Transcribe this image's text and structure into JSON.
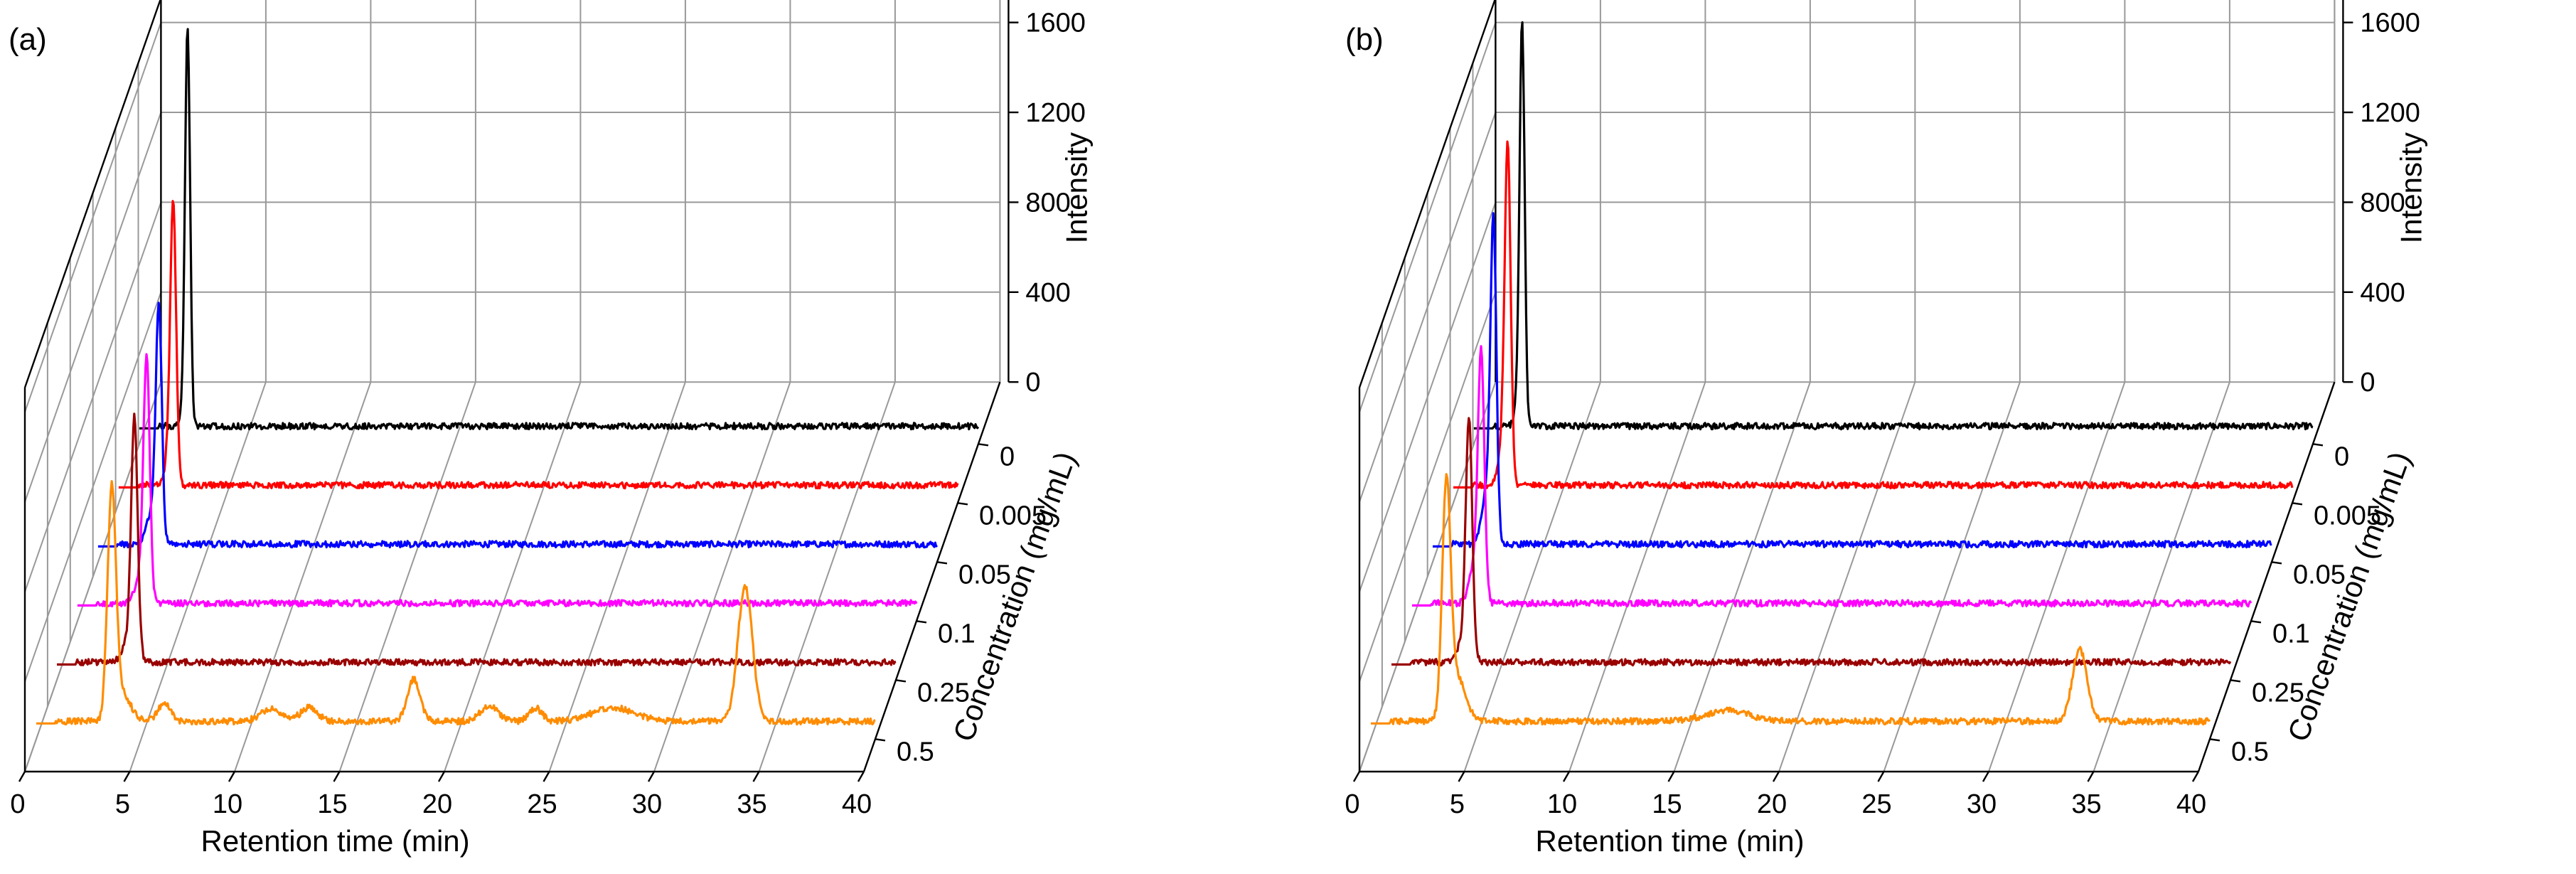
{
  "chart_data": [
    {
      "type": "line",
      "subtype": "3d-waterfall",
      "panel_label": "(a)",
      "xlabel": "Retention time (min)",
      "ylabel": "Concentration (mg/mL)",
      "zlabel": "Intensity",
      "xlim": [
        0,
        40
      ],
      "zlim": [
        0,
        1800
      ],
      "x_ticks": [
        "0",
        "5",
        "10",
        "15",
        "20",
        "25",
        "30",
        "35",
        "40"
      ],
      "z_ticks": [
        "0",
        "400",
        "800",
        "1200",
        "1600"
      ],
      "series": [
        {
          "name": "0",
          "color": "#000000",
          "peaks": [
            [
              2.3,
              1750,
              0.12
            ],
            [
              2.1,
              60,
              0.15
            ]
          ]
        },
        {
          "name": "0.005",
          "color": "#ff0000",
          "peaks": [
            [
              2.6,
              1200,
              0.14
            ],
            [
              2.4,
              120,
              0.2
            ]
          ]
        },
        {
          "name": "0.05",
          "color": "#0000ff",
          "peaks": [
            [
              2.9,
              1000,
              0.14
            ],
            [
              2.6,
              160,
              0.25
            ]
          ]
        },
        {
          "name": "0.1",
          "color": "#ff00ff",
          "peaks": [
            [
              3.3,
              1050,
              0.15
            ],
            [
              3.0,
              120,
              0.25
            ]
          ]
        },
        {
          "name": "0.25",
          "color": "#990000",
          "peaks": [
            [
              3.7,
              1000,
              0.15
            ],
            [
              3.5,
              120,
              0.3
            ]
          ]
        },
        {
          "name": "0.5",
          "color": "#ff8c00",
          "peaks": [
            [
              3.6,
              1000,
              0.2
            ],
            [
              4.1,
              120,
              0.4
            ],
            [
              6.1,
              80,
              0.3
            ],
            [
              11.2,
              55,
              0.5
            ],
            [
              13.0,
              60,
              0.4
            ],
            [
              18.0,
              190,
              0.3
            ],
            [
              21.6,
              70,
              0.4
            ],
            [
              23.8,
              60,
              0.3
            ],
            [
              27.5,
              60,
              1.0
            ],
            [
              33.8,
              600,
              0.35
            ]
          ]
        }
      ]
    },
    {
      "type": "line",
      "subtype": "3d-waterfall",
      "panel_label": "(b)",
      "xlabel": "Retention time (min)",
      "ylabel": "Concentration (mg/mL)",
      "zlabel": "Intensity",
      "xlim": [
        0,
        40
      ],
      "zlim": [
        0,
        1800
      ],
      "x_ticks": [
        "0",
        "5",
        "10",
        "15",
        "20",
        "25",
        "30",
        "35",
        "40"
      ],
      "z_ticks": [
        "0",
        "400",
        "800",
        "1200",
        "1600"
      ],
      "series": [
        {
          "name": "0",
          "color": "#000000",
          "peaks": [
            [
              2.3,
              1750,
              0.12
            ],
            [
              2.1,
              110,
              0.15
            ]
          ]
        },
        {
          "name": "0.005",
          "color": "#ff0000",
          "peaks": [
            [
              2.6,
              1400,
              0.14
            ],
            [
              2.4,
              220,
              0.2
            ]
          ]
        },
        {
          "name": "0.05",
          "color": "#0000ff",
          "peaks": [
            [
              2.9,
              1350,
              0.14
            ],
            [
              2.6,
              240,
              0.25
            ]
          ]
        },
        {
          "name": "0.1",
          "color": "#ff00ff",
          "peaks": [
            [
              3.3,
              1050,
              0.15
            ],
            [
              3.0,
              180,
              0.25
            ]
          ]
        },
        {
          "name": "0.25",
          "color": "#990000",
          "peaks": [
            [
              3.7,
              1000,
              0.15
            ],
            [
              3.5,
              120,
              0.3
            ]
          ]
        },
        {
          "name": "0.5",
          "color": "#ff8c00",
          "peaks": [
            [
              3.6,
              1000,
              0.2
            ],
            [
              4.1,
              200,
              0.4
            ],
            [
              17.0,
              50,
              1.0
            ],
            [
              33.8,
              320,
              0.35
            ]
          ]
        }
      ]
    }
  ]
}
